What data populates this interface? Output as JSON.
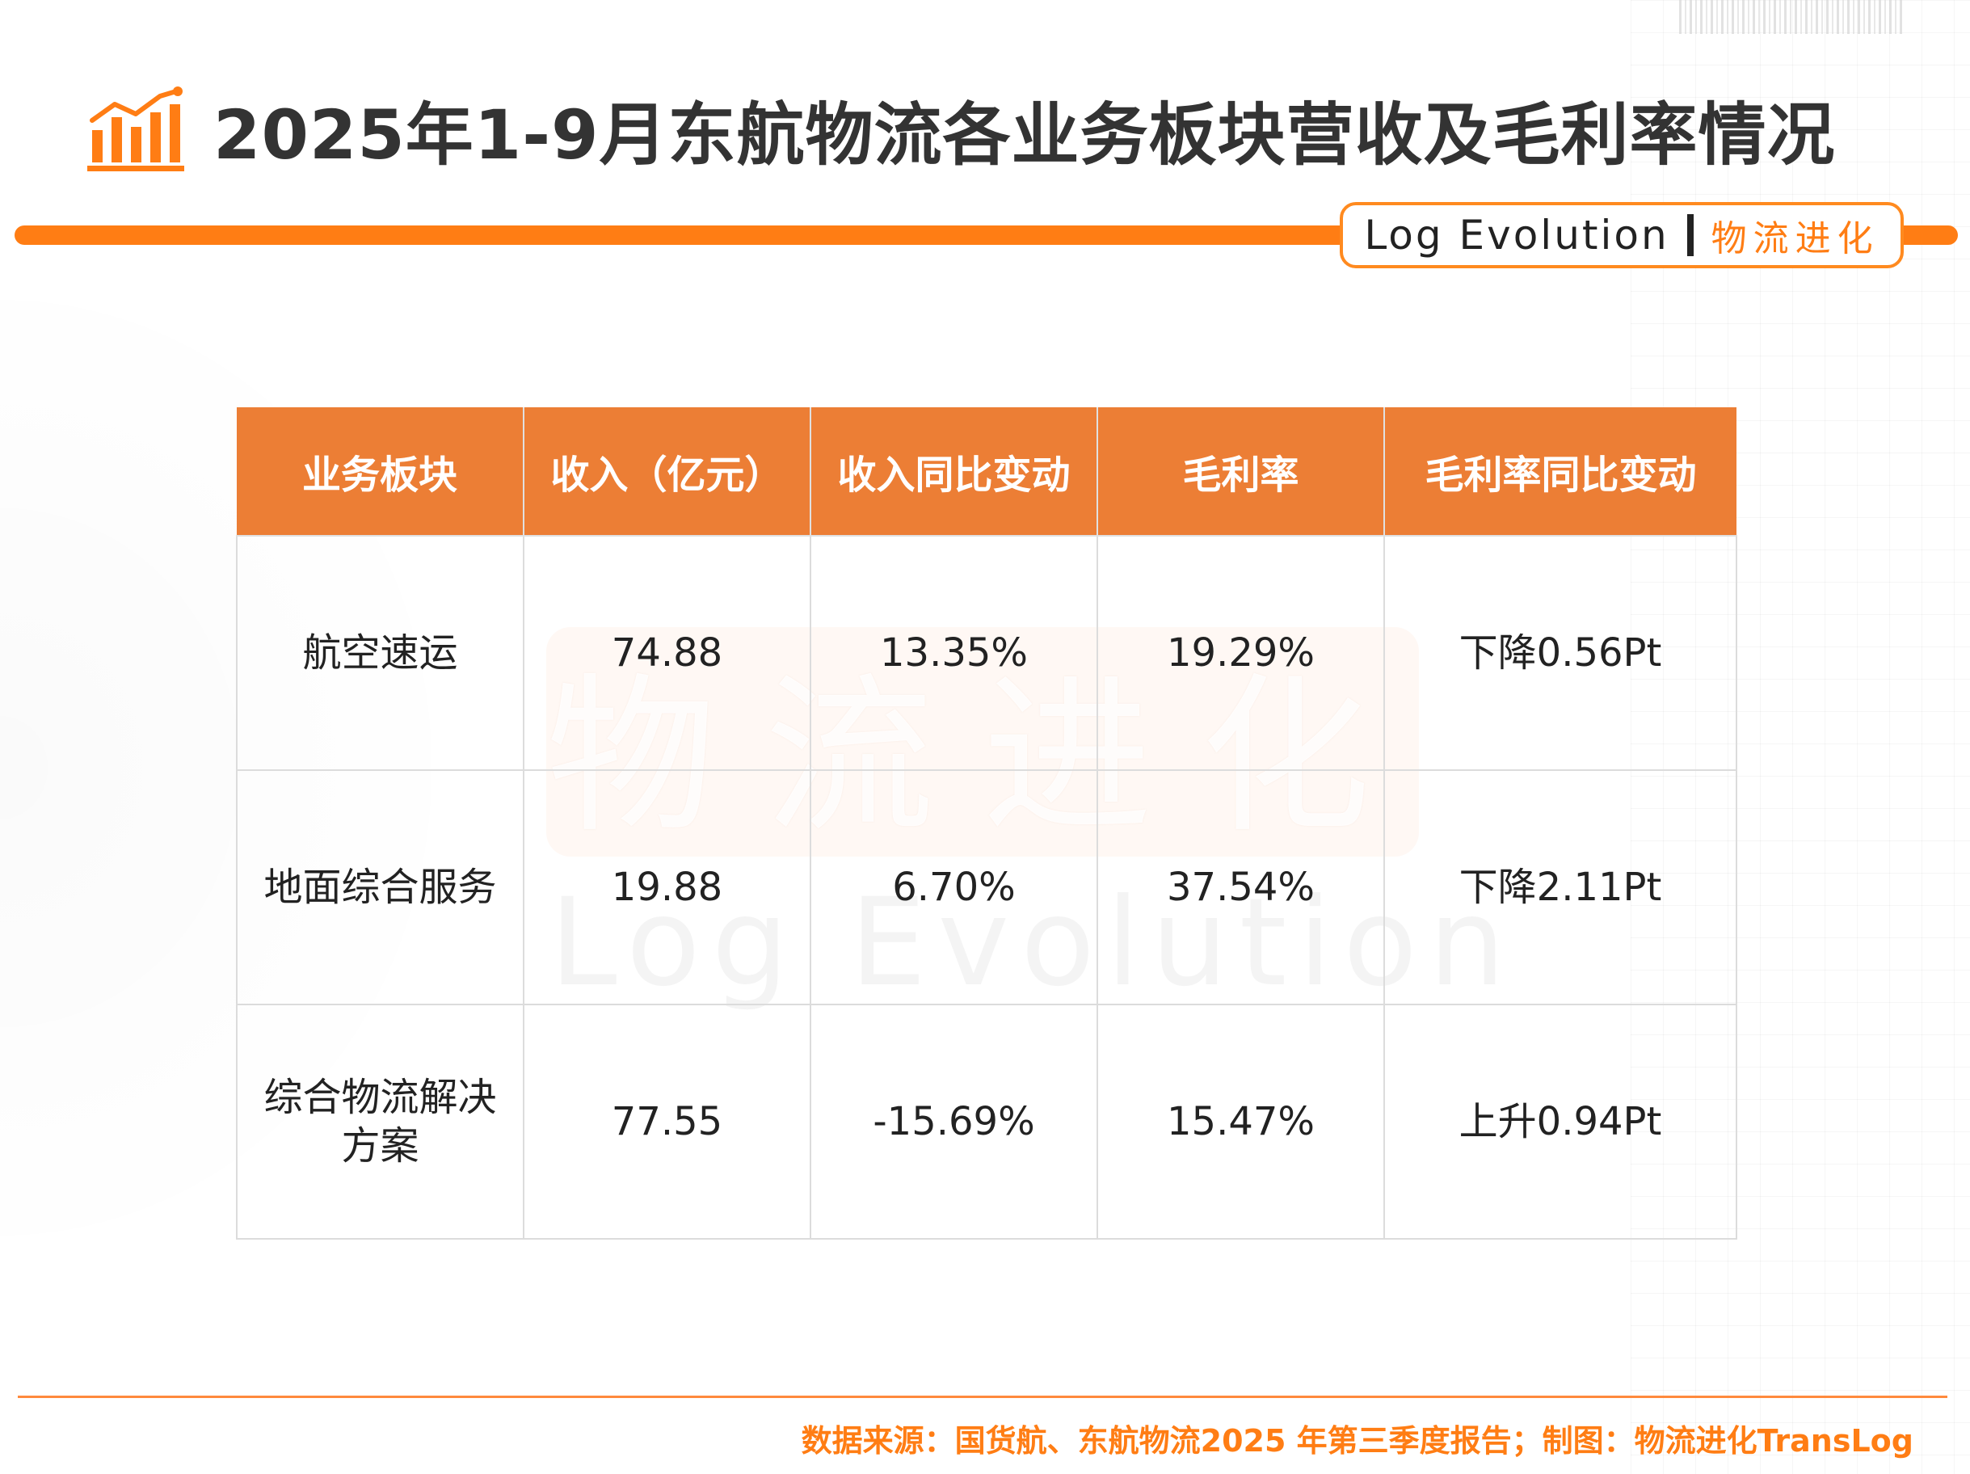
{
  "header": {
    "title": "2025年1-9月东航物流各业务板块营收及毛利率情况",
    "icon": "bar-chart-trend-icon",
    "accent_color": "#ff7d14"
  },
  "brand": {
    "en": "Log Evolution",
    "cn": "物流进化"
  },
  "watermark": {
    "cn": "物流进化",
    "en": "Log Evolution"
  },
  "chart_data": {
    "type": "table",
    "columns": [
      "业务板块",
      "收入（亿元）",
      "收入同比变动",
      "毛利率",
      "毛利率同比变动"
    ],
    "rows": [
      [
        "航空速运",
        "74.88",
        "13.35%",
        "19.29%",
        "下降0.56Pt"
      ],
      [
        "地面综合服务",
        "19.88",
        "6.70%",
        "37.54%",
        "下降2.11Pt"
      ],
      [
        "综合物流解决方案",
        "77.55",
        "-15.69%",
        "15.47%",
        "上升0.94Pt"
      ]
    ],
    "header_color": "#ec7e35"
  },
  "footer": {
    "source": "数据来源：国货航、东航物流2025 年第三季度报告；制图：物流进化TransLog"
  }
}
